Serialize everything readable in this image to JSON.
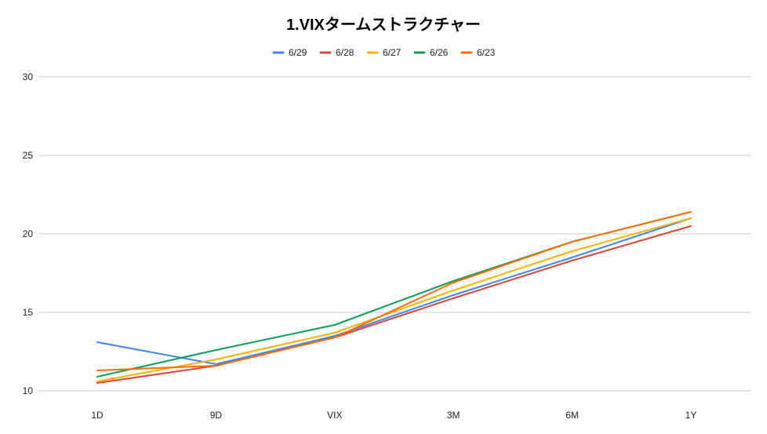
{
  "chart_data": {
    "type": "line",
    "title": "1.VIXタームストラクチャー",
    "xlabel": "",
    "ylabel": "",
    "categories": [
      "1D",
      "9D",
      "VIX",
      "3M",
      "6M",
      "1Y"
    ],
    "ylim": [
      10,
      30
    ],
    "yticks": [
      10,
      15,
      20,
      25,
      30
    ],
    "grid": true,
    "legend_position": "top",
    "series": [
      {
        "name": "6/29",
        "color": "#4285f4",
        "values": [
          13.1,
          11.7,
          13.5,
          16.1,
          18.5,
          21.0
        ]
      },
      {
        "name": "6/28",
        "color": "#db4437",
        "values": [
          10.5,
          11.6,
          13.4,
          15.9,
          18.3,
          20.5
        ]
      },
      {
        "name": "6/27",
        "color": "#f4b400",
        "values": [
          10.6,
          12.0,
          13.7,
          16.4,
          18.9,
          21.0
        ]
      },
      {
        "name": "6/26",
        "color": "#0f9d58",
        "values": [
          10.9,
          12.6,
          14.2,
          17.0,
          19.5,
          21.4
        ]
      },
      {
        "name": "6/23",
        "color": "#ff6d01",
        "values": [
          11.3,
          11.6,
          13.4,
          16.9,
          19.5,
          21.4
        ]
      }
    ]
  }
}
